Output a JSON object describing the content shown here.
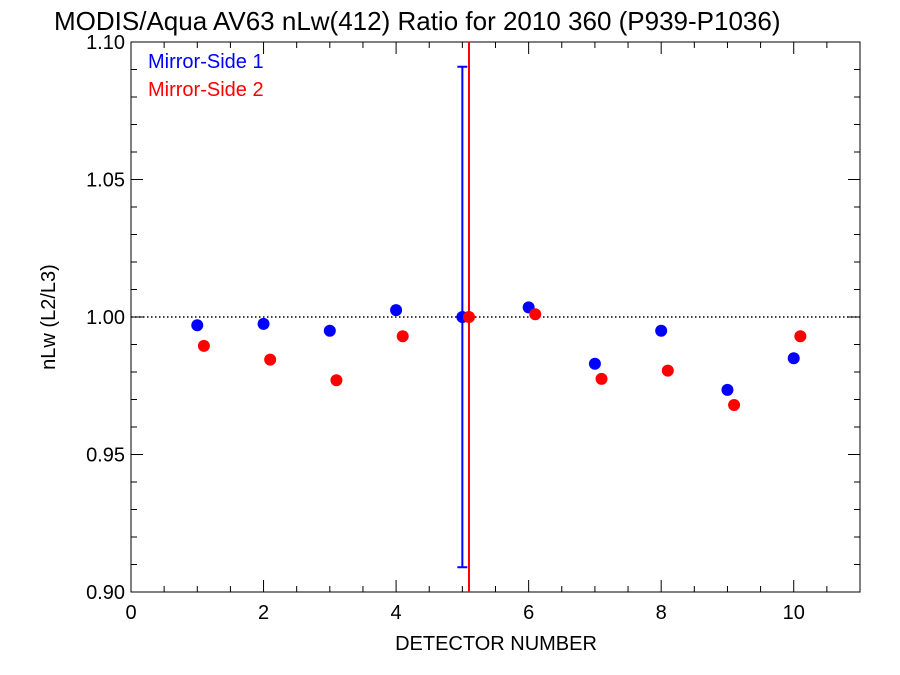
{
  "chart_data": {
    "type": "scatter",
    "title": "MODIS/Aqua AV63 nLw(412) Ratio for 2010 360 (P939-P1036)",
    "xlabel": "DETECTOR NUMBER",
    "ylabel": "nLw (L2/L3)",
    "xlim": [
      0,
      11
    ],
    "ylim": [
      0.9,
      1.1
    ],
    "x_ticks": [
      0,
      2,
      4,
      6,
      8,
      10
    ],
    "x_tick_labels": [
      "0",
      "2",
      "4",
      "6",
      "8",
      "10"
    ],
    "y_ticks": [
      0.9,
      0.95,
      1.0,
      1.05,
      1.1
    ],
    "y_tick_labels": [
      "0.90",
      "0.95",
      "1.00",
      "1.05",
      "1.10"
    ],
    "reference_line": {
      "y": 1.0,
      "style": "dotted",
      "color": "#000000"
    },
    "legend_placement": "top-left",
    "grid": false,
    "series": [
      {
        "name": "Mirror-Side 1",
        "color": "#0000ff",
        "x": [
          1,
          2,
          3,
          4,
          5,
          6,
          7,
          8,
          9,
          10
        ],
        "y": [
          0.997,
          0.9975,
          0.995,
          1.0025,
          1.0,
          1.0035,
          0.983,
          0.995,
          0.9735,
          0.985
        ]
      },
      {
        "name": "Mirror-Side 2",
        "color": "#ff0000",
        "x": [
          1.1,
          2.1,
          3.1,
          4.1,
          5.1,
          6.1,
          7.1,
          8.1,
          9.1,
          10.1
        ],
        "y": [
          0.9895,
          0.9845,
          0.977,
          0.993,
          1.0,
          1.001,
          0.9775,
          0.9805,
          0.968,
          0.993
        ]
      }
    ],
    "error_bar": {
      "x": 5,
      "y_low": 0.909,
      "y_high": 1.091,
      "color": "#0000ff"
    },
    "vertical_line": {
      "x": 5.1,
      "color": "#ff0000"
    }
  }
}
